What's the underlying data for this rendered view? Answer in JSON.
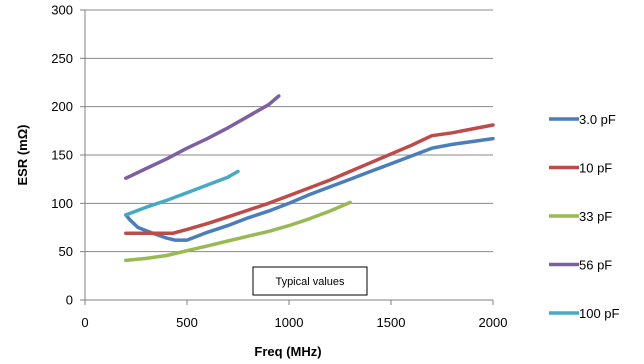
{
  "chart_data": {
    "type": "line",
    "xlabel": "Freq (MHz)",
    "ylabel": "ESR (mΩ)",
    "xlim": [
      0,
      2000
    ],
    "ylim": [
      0,
      300
    ],
    "xticks": [
      0,
      500,
      1000,
      1500,
      2000
    ],
    "yticks": [
      0,
      50,
      100,
      150,
      200,
      250,
      300
    ],
    "grid": "horizontal",
    "legend_position": "right",
    "annotation": "Typical values",
    "series": [
      {
        "name": "3.0 pF",
        "color": "#4a7ebb",
        "x": [
          200,
          220,
          260,
          320,
          400,
          440,
          500,
          600,
          700,
          800,
          900,
          1000,
          1100,
          1200,
          1300,
          1400,
          1500,
          1600,
          1700,
          1800,
          1900,
          2000
        ],
        "y": [
          88,
          83,
          75,
          70,
          64,
          62,
          62,
          70,
          77,
          85,
          92,
          100,
          109,
          117,
          125,
          133,
          141,
          149,
          157,
          161,
          164,
          167
        ]
      },
      {
        "name": "10 pF",
        "color": "#be4b48",
        "x": [
          200,
          300,
          430,
          500,
          600,
          700,
          800,
          900,
          1000,
          1100,
          1200,
          1300,
          1400,
          1500,
          1600,
          1700,
          1800,
          1900,
          2000
        ],
        "y": [
          69,
          69,
          69,
          73,
          79,
          86,
          93,
          100,
          108,
          116,
          124,
          133,
          142,
          151,
          160,
          170,
          173,
          177,
          181
        ]
      },
      {
        "name": "33 pF",
        "color": "#98b954",
        "x": [
          200,
          300,
          400,
          500,
          600,
          700,
          800,
          900,
          1000,
          1100,
          1200,
          1300
        ],
        "y": [
          41,
          43,
          46,
          51,
          56,
          61,
          66,
          71,
          77,
          84,
          92,
          101
        ]
      },
      {
        "name": "56 pF",
        "color": "#7d60a0",
        "x": [
          200,
          300,
          400,
          500,
          600,
          700,
          800,
          900,
          950
        ],
        "y": [
          126,
          136,
          146,
          157,
          167,
          178,
          190,
          202,
          211
        ]
      },
      {
        "name": "100 pF",
        "color": "#46aac5",
        "x": [
          200,
          300,
          400,
          500,
          600,
          700,
          750
        ],
        "y": [
          88,
          96,
          103,
          111,
          119,
          127,
          133
        ]
      }
    ]
  }
}
